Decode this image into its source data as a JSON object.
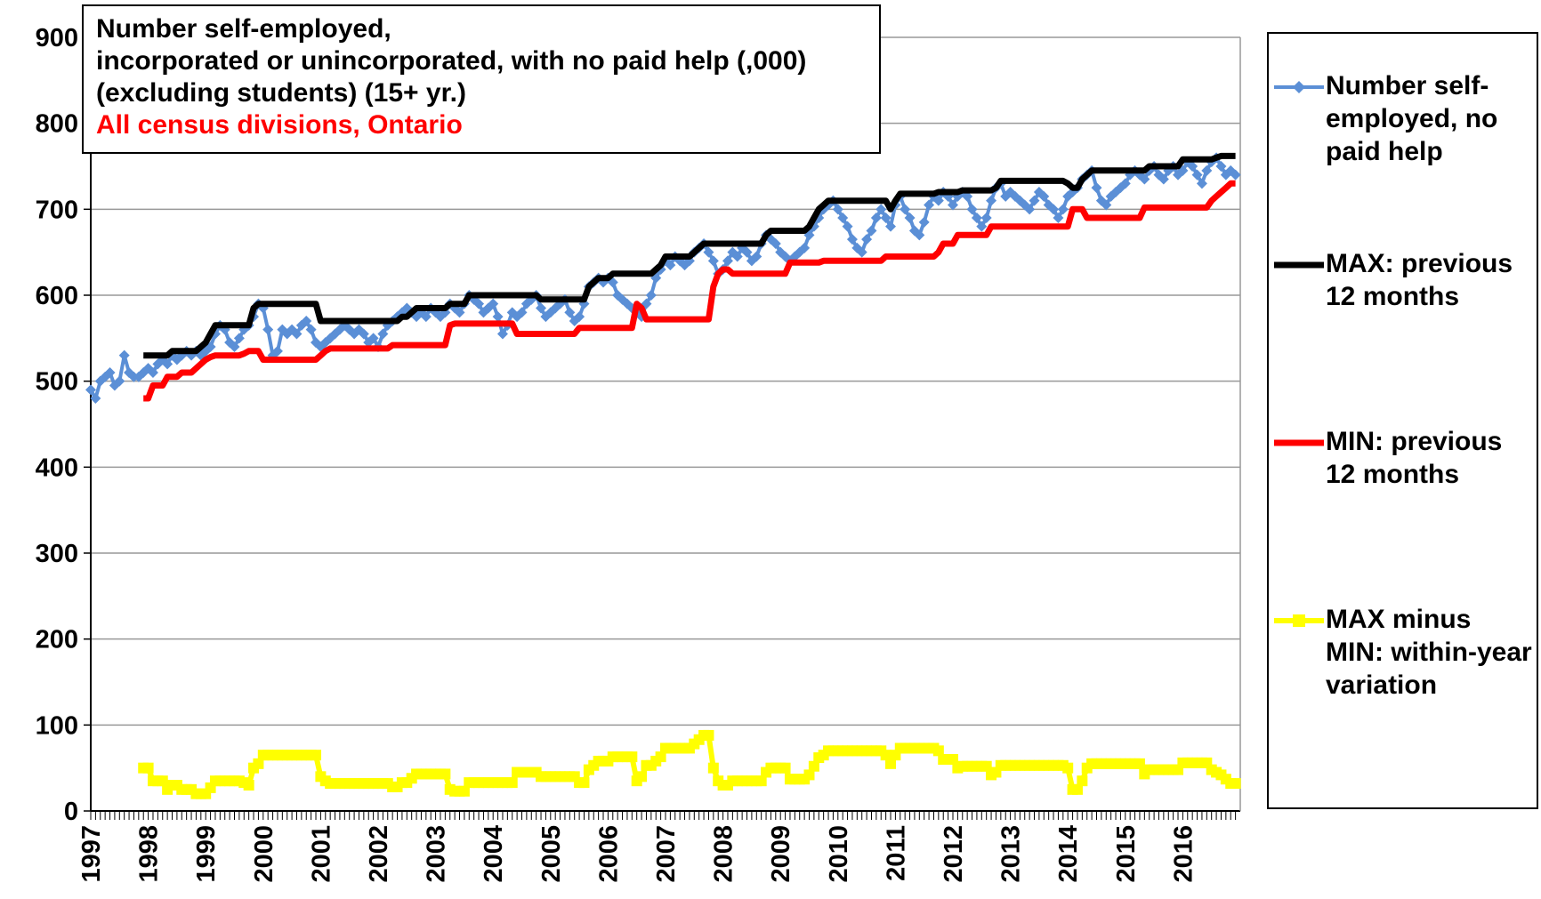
{
  "chart_data": {
    "type": "line",
    "title": "Number self-employed,\nincorporated or unincorporated, with no paid help (,000)\n(excluding students) (15+ yr.)",
    "subtitle": "All census divisions, Ontario",
    "categories": [
      "1997",
      null,
      null,
      null,
      null,
      null,
      null,
      null,
      null,
      null,
      null,
      null,
      "1998",
      null,
      null,
      null,
      null,
      null,
      null,
      null,
      null,
      null,
      null,
      null,
      "1999",
      null,
      null,
      null,
      null,
      null,
      null,
      null,
      null,
      null,
      null,
      null,
      "2000",
      null,
      null,
      null,
      null,
      null,
      null,
      null,
      null,
      null,
      null,
      null,
      "2001",
      null,
      null,
      null,
      null,
      null,
      null,
      null,
      null,
      null,
      null,
      null,
      "2002",
      null,
      null,
      null,
      null,
      null,
      null,
      null,
      null,
      null,
      null,
      null,
      "2003",
      null,
      null,
      null,
      null,
      null,
      null,
      null,
      null,
      null,
      null,
      null,
      "2004",
      null,
      null,
      null,
      null,
      null,
      null,
      null,
      null,
      null,
      null,
      null,
      "2005",
      null,
      null,
      null,
      null,
      null,
      null,
      null,
      null,
      null,
      null,
      null,
      "2006",
      null,
      null,
      null,
      null,
      null,
      null,
      null,
      null,
      null,
      null,
      null,
      "2007",
      null,
      null,
      null,
      null,
      null,
      null,
      null,
      null,
      null,
      null,
      null,
      "2008",
      null,
      null,
      null,
      null,
      null,
      null,
      null,
      null,
      null,
      null,
      null,
      "2009",
      null,
      null,
      null,
      null,
      null,
      null,
      null,
      null,
      null,
      null,
      null,
      "2010",
      null,
      null,
      null,
      null,
      null,
      null,
      null,
      null,
      null,
      null,
      null,
      "2011",
      null,
      null,
      null,
      null,
      null,
      null,
      null,
      null,
      null,
      null,
      null,
      "2012",
      null,
      null,
      null,
      null,
      null,
      null,
      null,
      null,
      null,
      null,
      null,
      "2013",
      null,
      null,
      null,
      null,
      null,
      null,
      null,
      null,
      null,
      null,
      null,
      "2014",
      null,
      null,
      null,
      null,
      null,
      null,
      null,
      null,
      null,
      null,
      null,
      "2015",
      null,
      null,
      null,
      null,
      null,
      null,
      null,
      null,
      null,
      null,
      null,
      "2016",
      null,
      null,
      null,
      null,
      null,
      null,
      null,
      null,
      null,
      null,
      null
    ],
    "series": [
      {
        "name": "Number self-employed, no paid help",
        "color": "#5b8fd6",
        "marker": "diamond",
        "width": 4,
        "values": [
          490,
          480,
          500,
          505,
          510,
          495,
          500,
          530,
          510,
          505,
          505,
          510,
          515,
          510,
          520,
          525,
          520,
          530,
          525,
          530,
          535,
          530,
          535,
          530,
          535,
          540,
          555,
          565,
          560,
          545,
          540,
          550,
          560,
          565,
          575,
          590,
          585,
          560,
          530,
          535,
          560,
          555,
          560,
          555,
          565,
          570,
          560,
          545,
          540,
          545,
          550,
          555,
          560,
          565,
          560,
          555,
          560,
          555,
          545,
          550,
          540,
          555,
          565,
          570,
          575,
          580,
          585,
          580,
          575,
          580,
          575,
          585,
          580,
          575,
          580,
          590,
          585,
          580,
          590,
          600,
          595,
          590,
          580,
          585,
          590,
          575,
          555,
          565,
          580,
          575,
          580,
          590,
          595,
          600,
          585,
          575,
          580,
          585,
          590,
          595,
          580,
          570,
          575,
          590,
          610,
          615,
          620,
          615,
          620,
          615,
          600,
          595,
          590,
          585,
          580,
          575,
          590,
          600,
          620,
          630,
          640,
          635,
          645,
          640,
          635,
          640,
          650,
          655,
          660,
          650,
          640,
          625,
          630,
          640,
          650,
          645,
          655,
          650,
          640,
          645,
          660,
          670,
          665,
          660,
          650,
          645,
          640,
          645,
          650,
          655,
          670,
          680,
          690,
          700,
          705,
          710,
          700,
          690,
          680,
          665,
          655,
          650,
          665,
          675,
          690,
          700,
          690,
          680,
          705,
          715,
          700,
          690,
          675,
          670,
          685,
          705,
          715,
          710,
          720,
          715,
          705,
          715,
          720,
          715,
          700,
          690,
          680,
          690,
          710,
          725,
          730,
          715,
          720,
          715,
          710,
          705,
          700,
          710,
          720,
          715,
          705,
          700,
          690,
          700,
          715,
          720,
          725,
          735,
          740,
          745,
          725,
          710,
          705,
          715,
          720,
          725,
          730,
          740,
          745,
          740,
          735,
          745,
          750,
          740,
          735,
          745,
          750,
          740,
          745,
          755,
          750,
          740,
          730,
          745,
          755,
          760,
          750,
          740,
          745,
          740
        ]
      },
      {
        "name": "MAX: previous 12 months",
        "color": "#000000",
        "marker": null,
        "width": 7,
        "values": [
          null,
          null,
          null,
          null,
          null,
          null,
          null,
          null,
          null,
          null,
          null,
          530,
          530,
          530,
          530,
          530,
          530,
          535,
          535,
          535,
          535,
          535,
          535,
          540,
          545,
          555,
          565,
          565,
          565,
          565,
          565,
          565,
          565,
          565,
          585,
          590,
          590,
          590,
          590,
          590,
          590,
          590,
          590,
          590,
          590,
          590,
          590,
          590,
          570,
          570,
          570,
          570,
          570,
          570,
          570,
          570,
          570,
          570,
          570,
          570,
          570,
          570,
          570,
          570,
          570,
          575,
          575,
          580,
          585,
          585,
          585,
          585,
          585,
          585,
          585,
          590,
          590,
          590,
          590,
          600,
          600,
          600,
          600,
          600,
          600,
          600,
          600,
          600,
          600,
          600,
          600,
          600,
          600,
          600,
          595,
          595,
          595,
          595,
          595,
          595,
          595,
          595,
          595,
          595,
          610,
          615,
          620,
          620,
          620,
          625,
          625,
          625,
          625,
          625,
          625,
          625,
          625,
          625,
          630,
          635,
          645,
          645,
          645,
          645,
          645,
          645,
          650,
          655,
          660,
          660,
          660,
          660,
          660,
          660,
          660,
          660,
          660,
          660,
          660,
          660,
          660,
          670,
          675,
          675,
          675,
          675,
          675,
          675,
          675,
          675,
          680,
          690,
          700,
          705,
          710,
          710,
          710,
          710,
          710,
          710,
          710,
          710,
          710,
          710,
          710,
          710,
          710,
          700,
          710,
          718,
          718,
          718,
          718,
          718,
          718,
          718,
          718,
          720,
          720,
          720,
          720,
          720,
          722,
          722,
          722,
          722,
          722,
          722,
          722,
          725,
          733,
          733,
          733,
          733,
          733,
          733,
          733,
          733,
          733,
          733,
          733,
          733,
          733,
          733,
          730,
          725,
          725,
          735,
          740,
          745,
          745,
          745,
          745,
          745,
          745,
          745,
          745,
          745,
          745,
          745,
          745,
          750,
          750,
          750,
          750,
          750,
          750,
          750,
          758,
          758,
          758,
          758,
          758,
          758,
          758,
          760,
          762,
          762,
          762,
          762
        ]
      },
      {
        "name": "MIN: previous 12 months",
        "color": "#ff0000",
        "marker": null,
        "width": 7,
        "values": [
          null,
          null,
          null,
          null,
          null,
          null,
          null,
          null,
          null,
          null,
          null,
          480,
          480,
          495,
          495,
          495,
          505,
          505,
          505,
          510,
          510,
          510,
          515,
          520,
          525,
          528,
          530,
          530,
          530,
          530,
          530,
          530,
          532,
          535,
          535,
          535,
          525,
          525,
          525,
          525,
          525,
          525,
          525,
          525,
          525,
          525,
          525,
          525,
          530,
          535,
          538,
          538,
          538,
          538,
          538,
          538,
          538,
          538,
          538,
          538,
          538,
          538,
          538,
          542,
          542,
          542,
          542,
          542,
          542,
          542,
          542,
          542,
          542,
          542,
          542,
          565,
          567,
          567,
          567,
          567,
          567,
          567,
          567,
          567,
          567,
          567,
          567,
          567,
          567,
          555,
          555,
          555,
          555,
          555,
          555,
          555,
          555,
          555,
          555,
          555,
          555,
          555,
          562,
          562,
          562,
          562,
          562,
          562,
          562,
          562,
          562,
          562,
          562,
          562,
          590,
          585,
          572,
          572,
          572,
          572,
          572,
          572,
          572,
          572,
          572,
          572,
          572,
          572,
          572,
          572,
          610,
          625,
          630,
          630,
          625,
          625,
          625,
          625,
          625,
          625,
          625,
          625,
          625,
          625,
          625,
          625,
          638,
          638,
          638,
          638,
          638,
          638,
          638,
          640,
          640,
          640,
          640,
          640,
          640,
          640,
          640,
          640,
          640,
          640,
          640,
          640,
          645,
          645,
          645,
          645,
          645,
          645,
          645,
          645,
          645,
          645,
          645,
          650,
          660,
          660,
          660,
          670,
          670,
          670,
          670,
          670,
          670,
          670,
          680,
          680,
          680,
          680,
          680,
          680,
          680,
          680,
          680,
          680,
          680,
          680,
          680,
          680,
          680,
          680,
          680,
          700,
          700,
          700,
          690,
          690,
          690,
          690,
          690,
          690,
          690,
          690,
          690,
          690,
          690,
          690,
          702,
          702,
          702,
          702,
          702,
          702,
          702,
          702,
          702,
          702,
          702,
          702,
          702,
          702,
          710,
          715,
          720,
          725,
          730,
          730
        ]
      },
      {
        "name": "MAX minus MIN: within-year variation",
        "color": "#ffff00",
        "marker": "square",
        "width": 6,
        "values": [
          null,
          null,
          null,
          null,
          null,
          null,
          null,
          null,
          null,
          null,
          null,
          50,
          50,
          35,
          35,
          35,
          25,
          30,
          30,
          25,
          25,
          25,
          20,
          20,
          20,
          27,
          35,
          35,
          35,
          35,
          35,
          35,
          33,
          30,
          50,
          55,
          65,
          65,
          65,
          65,
          65,
          65,
          65,
          65,
          65,
          65,
          65,
          65,
          40,
          35,
          32,
          32,
          32,
          32,
          32,
          32,
          32,
          32,
          32,
          32,
          32,
          32,
          32,
          28,
          28,
          33,
          33,
          38,
          43,
          43,
          43,
          43,
          43,
          43,
          43,
          25,
          23,
          23,
          23,
          33,
          33,
          33,
          33,
          33,
          33,
          33,
          33,
          33,
          33,
          45,
          45,
          45,
          45,
          45,
          40,
          40,
          40,
          40,
          40,
          40,
          40,
          40,
          33,
          33,
          48,
          53,
          58,
          58,
          58,
          63,
          63,
          63,
          63,
          63,
          35,
          40,
          53,
          53,
          58,
          63,
          73,
          73,
          73,
          73,
          73,
          73,
          78,
          83,
          88,
          88,
          50,
          35,
          30,
          30,
          35,
          35,
          35,
          35,
          35,
          35,
          35,
          45,
          50,
          50,
          50,
          50,
          37,
          37,
          37,
          37,
          42,
          52,
          62,
          65,
          70,
          70,
          70,
          70,
          70,
          70,
          70,
          70,
          70,
          70,
          70,
          70,
          65,
          55,
          65,
          73,
          73,
          73,
          73,
          73,
          73,
          73,
          73,
          70,
          60,
          60,
          60,
          50,
          52,
          52,
          52,
          52,
          52,
          52,
          42,
          45,
          53,
          53,
          53,
          53,
          53,
          53,
          53,
          53,
          53,
          53,
          53,
          53,
          53,
          53,
          50,
          25,
          25,
          35,
          50,
          55,
          55,
          55,
          55,
          55,
          55,
          55,
          55,
          55,
          55,
          55,
          43,
          48,
          48,
          48,
          48,
          48,
          48,
          48,
          56,
          56,
          56,
          56,
          56,
          56,
          48,
          45,
          42,
          37,
          32,
          32
        ]
      }
    ],
    "ylim": [
      0,
      900
    ],
    "yticks": [
      0,
      100,
      200,
      300,
      400,
      500,
      600,
      700,
      800,
      900
    ],
    "grid": true,
    "legend": "right"
  }
}
